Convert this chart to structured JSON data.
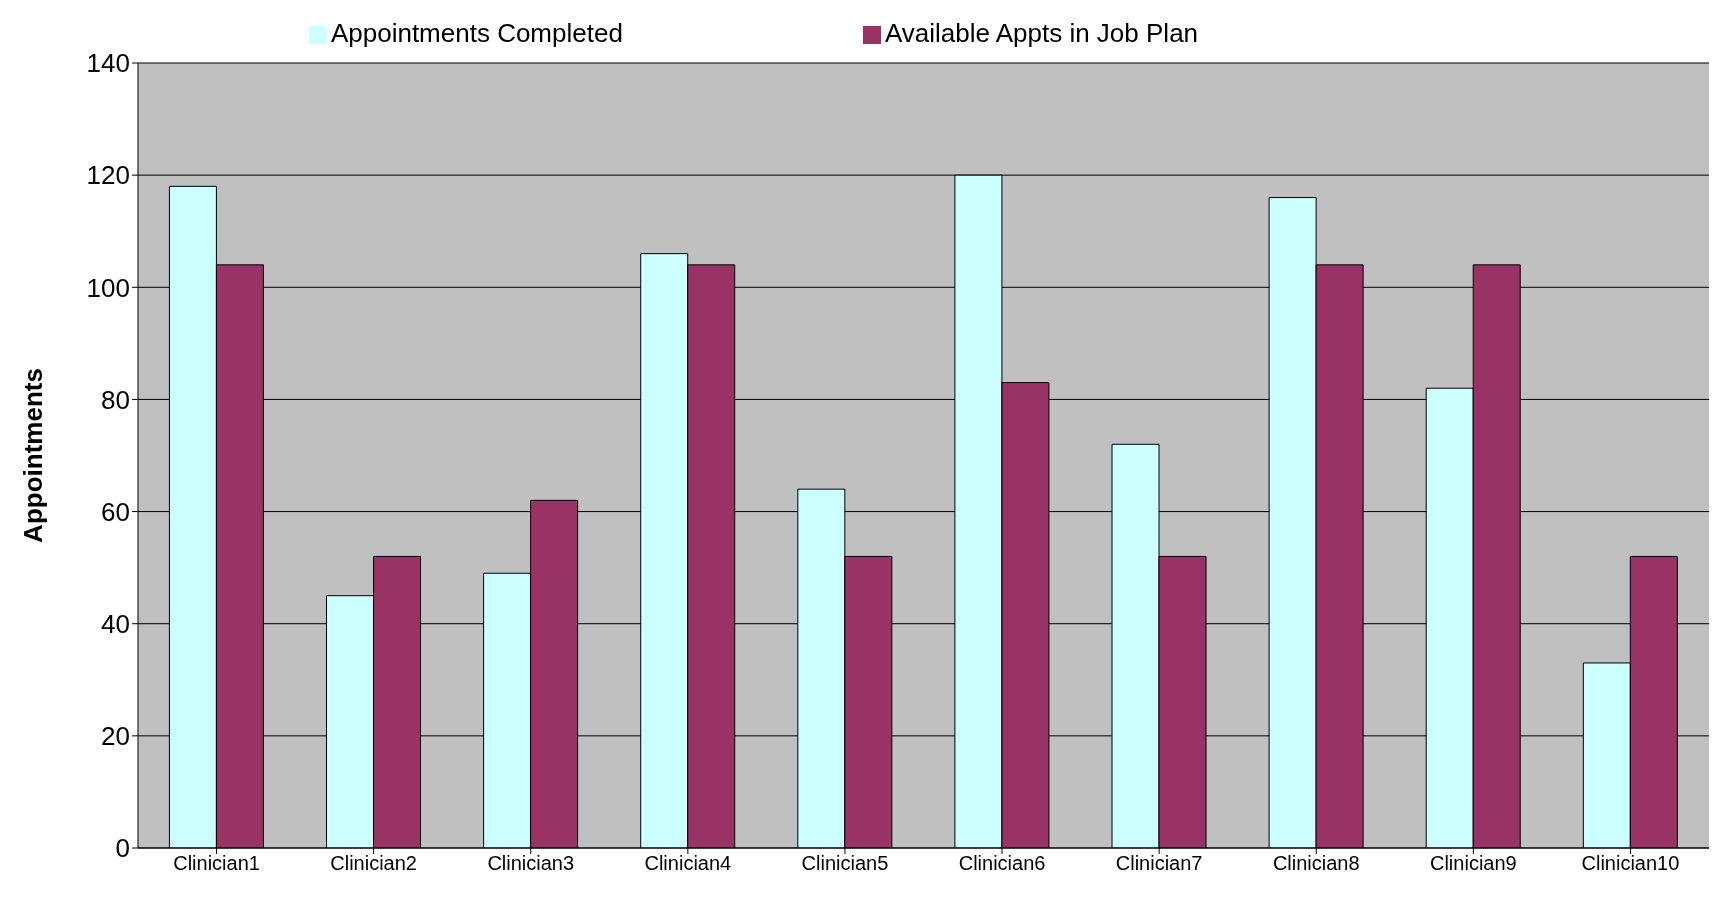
{
  "chart_data": {
    "type": "bar",
    "ylabel": "Appointments",
    "categories": [
      "Clinician1",
      "Clinician2",
      "Clinician3",
      "Clinician4",
      "Clinician5",
      "Clinician6",
      "Clinician7",
      "Clinician8",
      "Clinician9",
      "Clinician10"
    ],
    "series": [
      {
        "name": "Appointments Completed",
        "color": "#ccffff",
        "values": [
          118,
          45,
          49,
          106,
          64,
          120,
          72,
          116,
          82,
          33
        ]
      },
      {
        "name": "Available Appts in Job Plan",
        "color": "#993366",
        "values": [
          104,
          52,
          62,
          104,
          52,
          83,
          52,
          104,
          104,
          52
        ]
      }
    ],
    "ylim": [
      0,
      140
    ],
    "yticks": [
      0,
      20,
      40,
      60,
      80,
      100,
      120,
      140
    ],
    "grid": "y",
    "legend": "top"
  }
}
